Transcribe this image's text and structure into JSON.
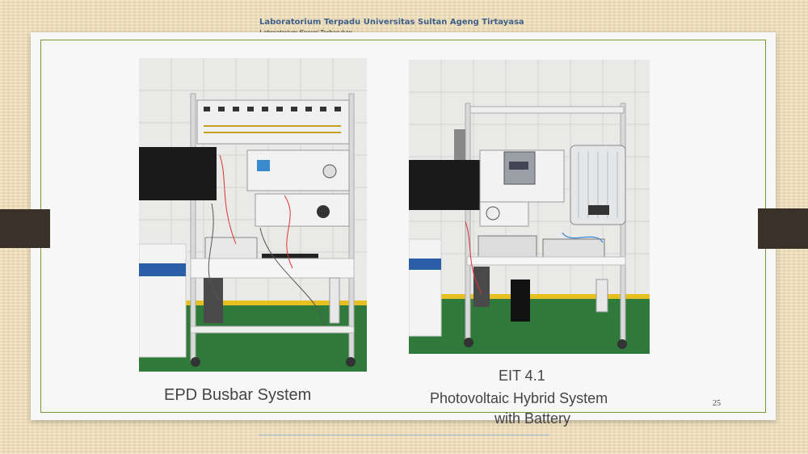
{
  "header": {
    "title": "Laboratorium Terpadu Universitas Sultan Ageng Tirtayasa",
    "subtitle": "Laboratorium Energi Terbarukan"
  },
  "captions": {
    "left": "EPD Busbar System",
    "right_line1": "EIT 4.1",
    "right_line2": "Photovoltaic Hybrid System",
    "right_line3": "with Battery"
  },
  "page_number": "25"
}
